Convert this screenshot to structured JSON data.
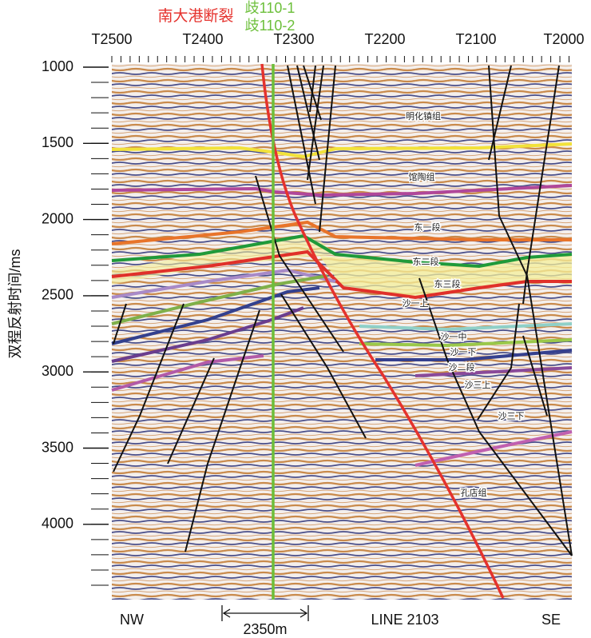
{
  "title": {
    "fault": "南大港断裂",
    "well_1": "歧110-1",
    "well_2": "歧110-2"
  },
  "y_axis": {
    "label": "双程反射时间/ms",
    "ticks": [
      "1000",
      "1500",
      "2000",
      "2500",
      "3000",
      "3500",
      "4000"
    ]
  },
  "x_axis": {
    "ticks": [
      "T2500",
      "T2400",
      "T2300",
      "T2200",
      "T2100",
      "T2000"
    ]
  },
  "formations": [
    "明化镇组",
    "馆陶组",
    "东一段",
    "东二段",
    "东三段",
    "沙一上",
    "沙一中",
    "沙一下",
    "沙二段",
    "沙三上",
    "沙三下",
    "孔店组"
  ],
  "bottom": {
    "left": "NW",
    "scale": "2350m",
    "line": "LINE 2103",
    "right": "SE"
  }
}
